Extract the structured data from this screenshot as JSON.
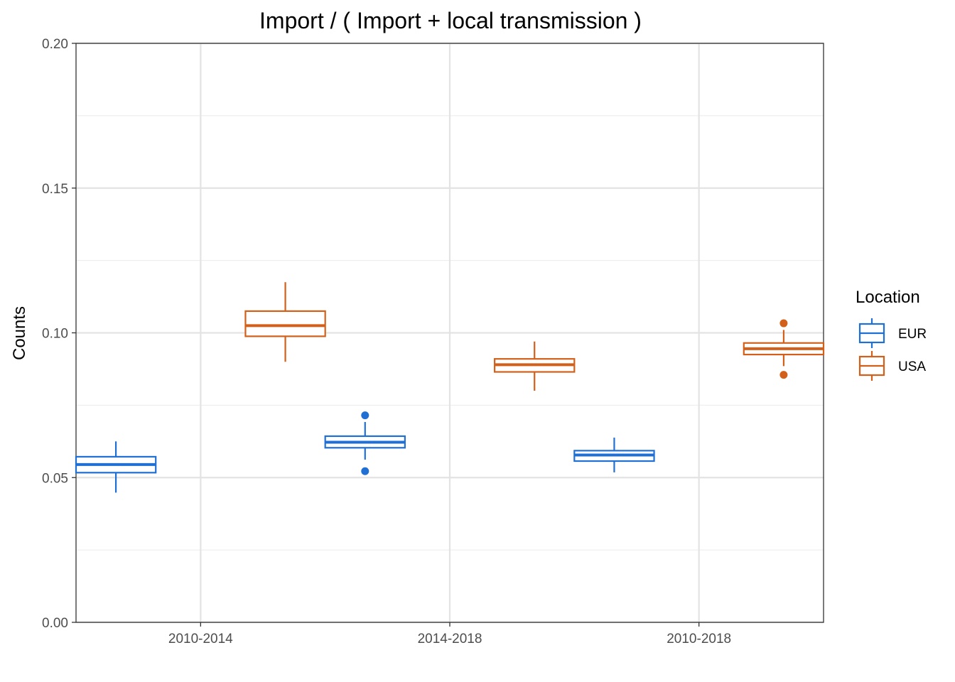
{
  "chart_data": {
    "type": "box",
    "title": "Import / ( Import + local transmission )",
    "xlabel": "",
    "ylabel": "Counts",
    "ylim": [
      0,
      0.2
    ],
    "yticks": [
      0.0,
      0.05,
      0.1,
      0.15,
      0.2
    ],
    "ytick_labels": [
      "0.00",
      "0.05",
      "0.10",
      "0.15",
      "0.20"
    ],
    "categories": [
      "2010-2014",
      "2014-2018",
      "2010-2018"
    ],
    "grid": true,
    "legend": {
      "title": "Location",
      "position": "right"
    },
    "series": [
      {
        "name": "EUR",
        "color": "#1f6fd4",
        "boxes": [
          {
            "whisker_low": 0.0448,
            "q1": 0.0517,
            "median": 0.0545,
            "q3": 0.0572,
            "whisker_high": 0.0625,
            "outliers": []
          },
          {
            "whisker_low": 0.0562,
            "q1": 0.0603,
            "median": 0.0622,
            "q3": 0.0643,
            "whisker_high": 0.0692,
            "outliers": [
              0.0715,
              0.0522
            ]
          },
          {
            "whisker_low": 0.0518,
            "q1": 0.0557,
            "median": 0.0578,
            "q3": 0.0593,
            "whisker_high": 0.0638,
            "outliers": []
          }
        ]
      },
      {
        "name": "USA",
        "color": "#d2601a",
        "boxes": [
          {
            "whisker_low": 0.09,
            "q1": 0.0988,
            "median": 0.1025,
            "q3": 0.1075,
            "whisker_high": 0.1175,
            "outliers": []
          },
          {
            "whisker_low": 0.08,
            "q1": 0.0865,
            "median": 0.089,
            "q3": 0.091,
            "whisker_high": 0.097,
            "outliers": []
          },
          {
            "whisker_low": 0.0885,
            "q1": 0.0925,
            "median": 0.0945,
            "q3": 0.0965,
            "whisker_high": 0.101,
            "outliers": [
              0.1033,
              0.0855
            ]
          }
        ]
      }
    ]
  }
}
